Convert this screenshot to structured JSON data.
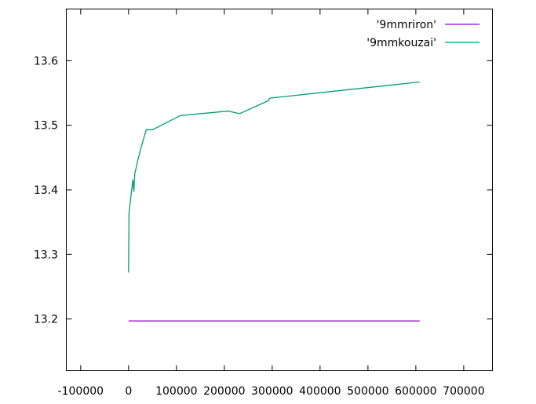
{
  "chart_data": {
    "type": "line",
    "title": "",
    "xlabel": "",
    "ylabel": "",
    "xlim": [
      -130000,
      760000
    ],
    "ylim": [
      13.12,
      13.68
    ],
    "xticks": [
      -100000,
      0,
      100000,
      200000,
      300000,
      400000,
      500000,
      600000,
      700000
    ],
    "yticks": [
      13.2,
      13.3,
      13.4,
      13.5,
      13.6
    ],
    "xtick_labels": [
      "-100000",
      "0",
      "100000",
      "200000",
      "300000",
      "400000",
      "500000",
      "600000",
      "700000"
    ],
    "ytick_labels": [
      "13.2",
      "13.3",
      "13.4",
      "13.5",
      "13.6"
    ],
    "grid": false,
    "legend_position": "top-right",
    "series": [
      {
        "name": "'9mmriron'",
        "color": "#9400d3",
        "points": [
          [
            0,
            13.197
          ],
          [
            608000,
            13.197
          ]
        ]
      },
      {
        "name": "'9mmkouzai'",
        "color": "#009e73",
        "points": [
          [
            0,
            13.272
          ],
          [
            1000,
            13.365
          ],
          [
            5000,
            13.39
          ],
          [
            9000,
            13.416
          ],
          [
            11000,
            13.397
          ],
          [
            13000,
            13.425
          ],
          [
            20000,
            13.448
          ],
          [
            27000,
            13.468
          ],
          [
            37000,
            13.493
          ],
          [
            50000,
            13.493
          ],
          [
            108000,
            13.515
          ],
          [
            208000,
            13.522
          ],
          [
            232000,
            13.518
          ],
          [
            292000,
            13.538
          ],
          [
            295000,
            13.542
          ],
          [
            608000,
            13.567
          ]
        ]
      }
    ]
  }
}
